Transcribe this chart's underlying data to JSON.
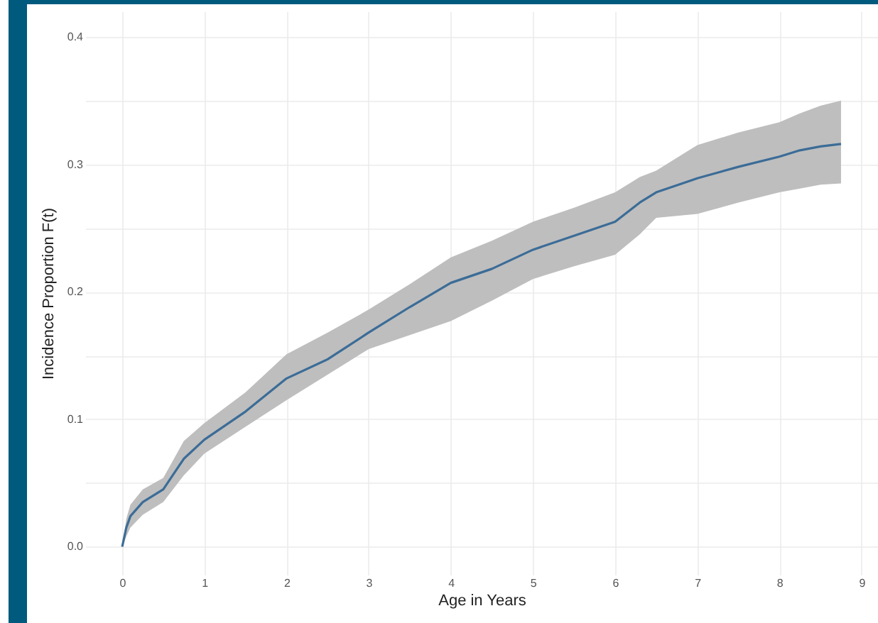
{
  "chart_data": {
    "type": "line",
    "xlabel": "Age in Years",
    "ylabel": "Incidence Proportion F(t)",
    "x": [
      0,
      0.05,
      0.1,
      0.25,
      0.5,
      0.75,
      1,
      1.5,
      2,
      2.5,
      3,
      3.5,
      4,
      4.5,
      5,
      5.5,
      6,
      6.3,
      6.5,
      7,
      7.5,
      8,
      8.25,
      8.5,
      8.75
    ],
    "series": [
      {
        "color": "#3b6c97",
        "values": [
          0,
          0.015,
          0.024,
          0.035,
          0.045,
          0.069,
          0.084,
          0.106,
          0.132,
          0.147,
          0.168,
          0.188,
          0.207,
          0.218,
          0.233,
          0.244,
          0.255,
          0.27,
          0.278,
          0.289,
          0.298,
          0.306,
          0.311,
          0.314,
          0.316
        ],
        "lower": [
          0,
          0.008,
          0.015,
          0.025,
          0.035,
          0.056,
          0.073,
          0.094,
          0.115,
          0.135,
          0.155,
          0.166,
          0.177,
          0.193,
          0.21,
          0.22,
          0.229,
          0.245,
          0.258,
          0.261,
          0.27,
          0.278,
          0.281,
          0.284,
          0.285
        ],
        "upper": [
          0,
          0.022,
          0.033,
          0.045,
          0.054,
          0.083,
          0.097,
          0.121,
          0.151,
          0.168,
          0.186,
          0.206,
          0.227,
          0.24,
          0.255,
          0.266,
          0.278,
          0.29,
          0.295,
          0.315,
          0.325,
          0.333,
          0.34,
          0.346,
          0.35
        ]
      }
    ],
    "xlim": [
      -0.45,
      9.2
    ],
    "ylim": [
      -0.022,
      0.42
    ],
    "xticks": [
      0,
      1,
      2,
      3,
      4,
      5,
      6,
      7,
      8,
      9
    ],
    "yticks": [
      {
        "value": 0,
        "label": "0.0"
      },
      {
        "value": 0.05,
        "label": null
      },
      0.1,
      {
        "value": 0.15,
        "label": null
      },
      0.2,
      {
        "value": 0.25,
        "label": null
      },
      0.3,
      {
        "value": 0.35,
        "label": null
      },
      0.4
    ],
    "grid": true
  }
}
